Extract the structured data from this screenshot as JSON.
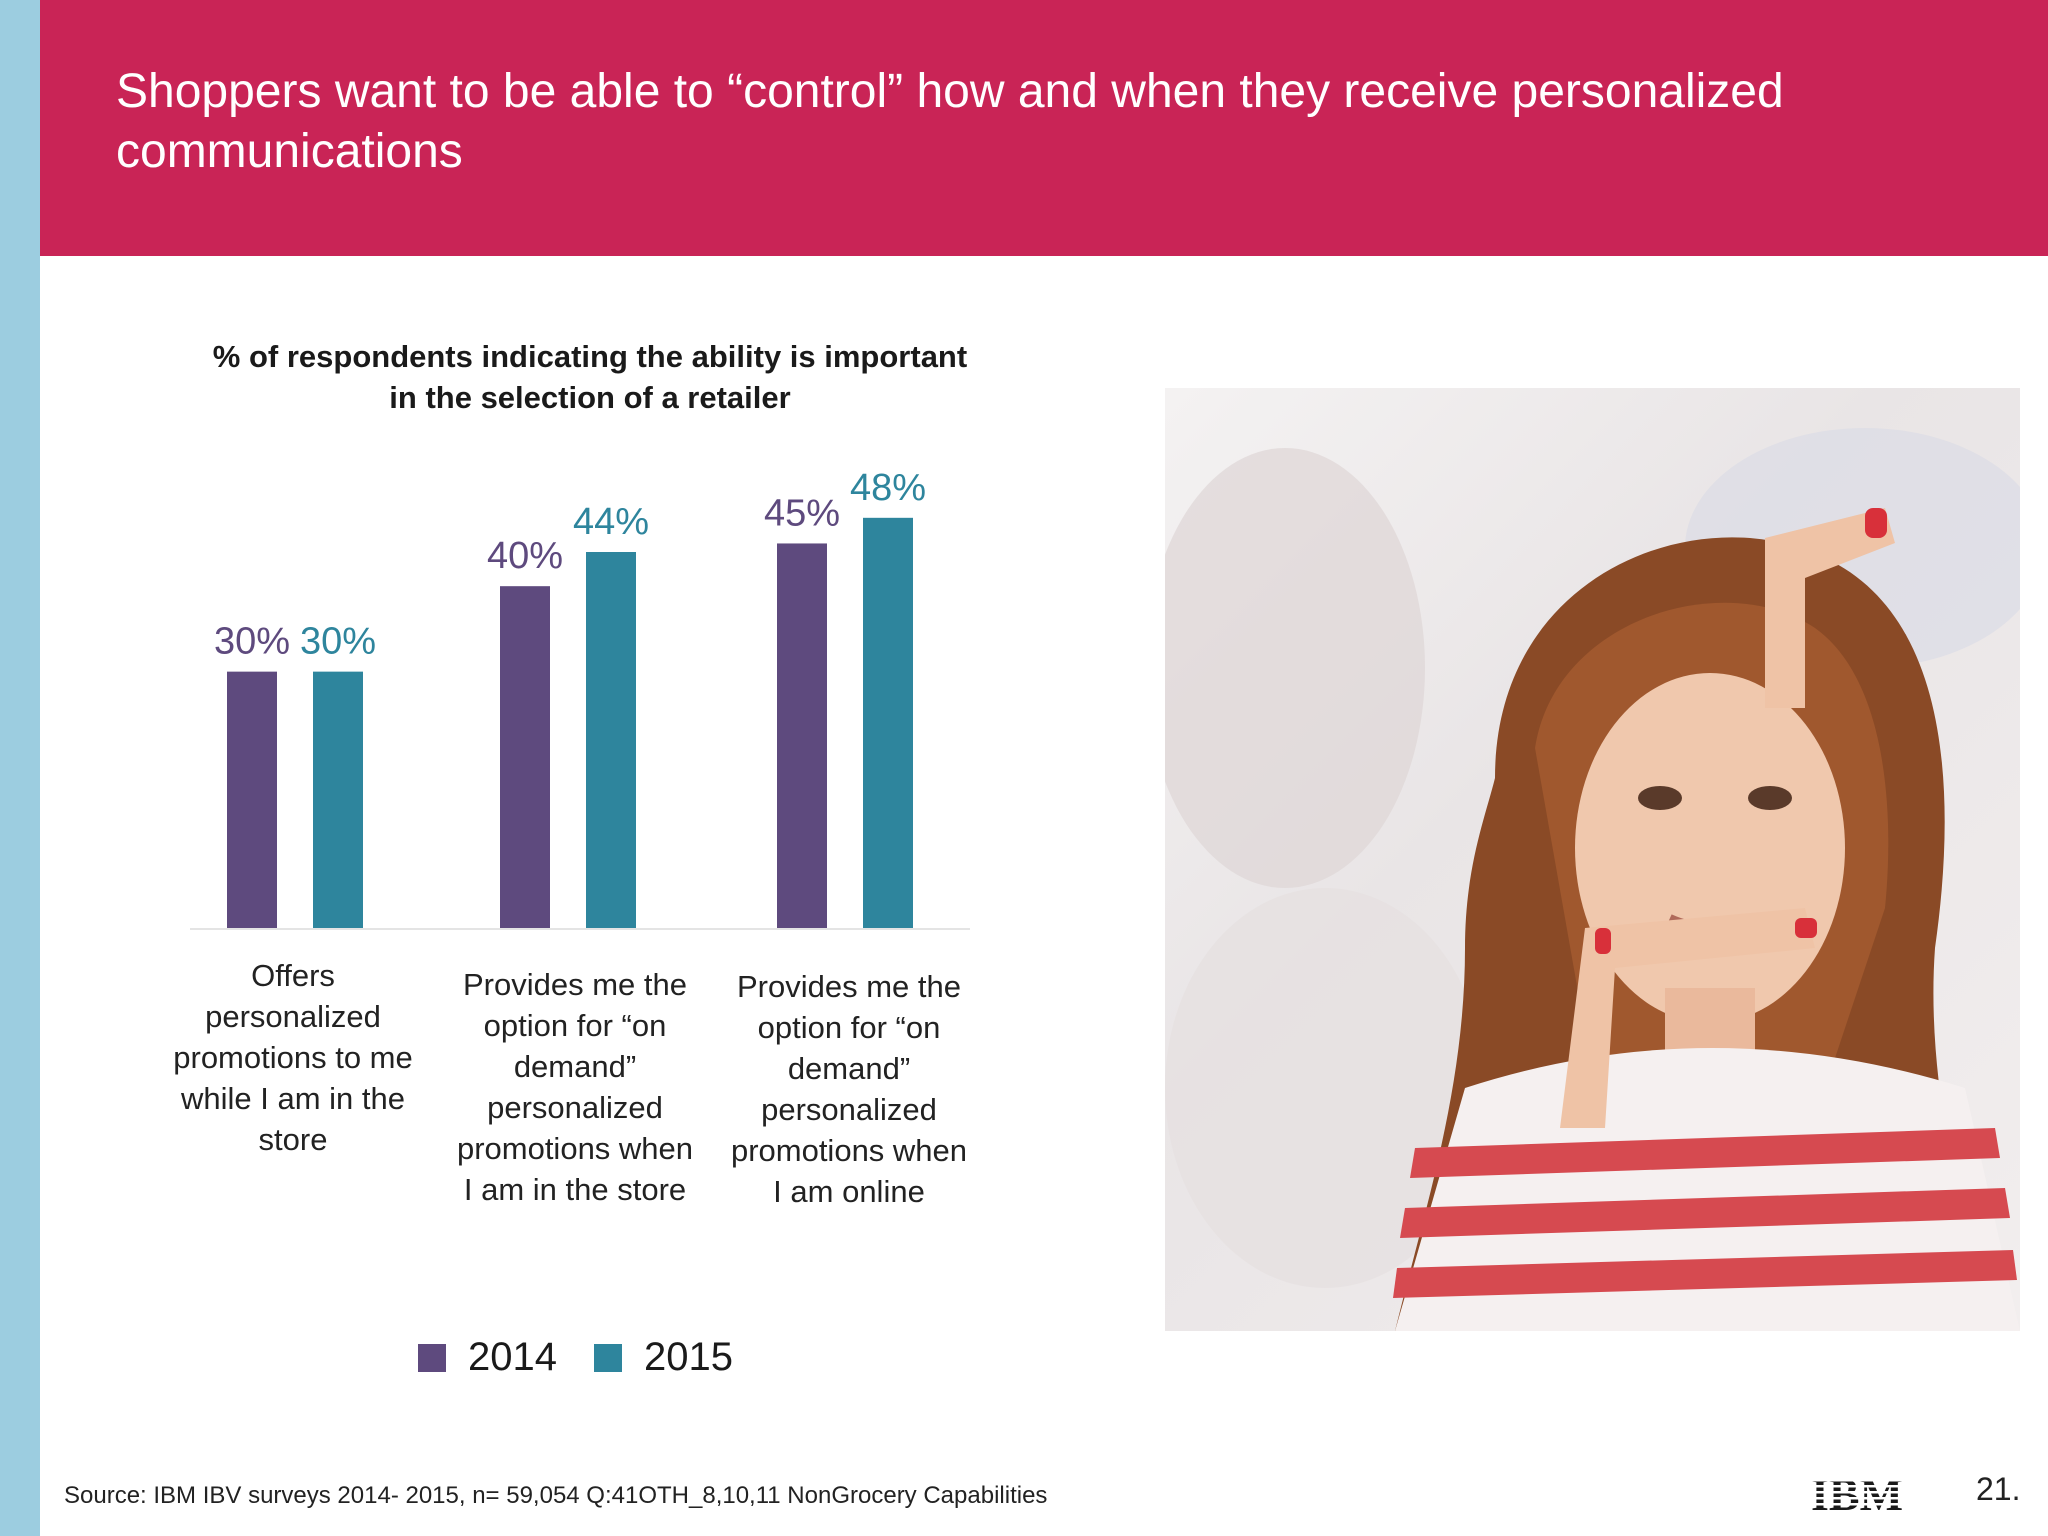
{
  "header": {
    "title": "Shoppers want to be able to “control” how and when they receive personalized communications"
  },
  "colors": {
    "header_bg": "#c92456",
    "stripe": "#9ccde0",
    "series_2014": "#5e4a7e",
    "series_2015": "#2e859d"
  },
  "chart_data": {
    "type": "bar",
    "title": "% of respondents indicating the ability is important in the selection of a retailer",
    "categories": [
      "Offers personalized promotions to me while I am in the store",
      "Provides me the option for “on demand” personalized promotions when I am in the store",
      "Provides me the option for “on demand” personalized promotions when I am online"
    ],
    "series": [
      {
        "name": "2014",
        "values": [
          30,
          40,
          45
        ],
        "labels": [
          "30%",
          "40%",
          "45%"
        ],
        "color": "#5e4a7e"
      },
      {
        "name": "2015",
        "values": [
          30,
          44,
          48
        ],
        "labels": [
          "30%",
          "44%",
          "48%"
        ],
        "color": "#2e859d"
      }
    ],
    "ylim": [
      0,
      55
    ],
    "xlabel": "",
    "ylabel": "",
    "legend": "bottom",
    "grid": false
  },
  "footer": {
    "source": "Source:  IBM IBV surveys 2014- 2015, n=  59,054 Q:41OTH_8,10,11  NonGrocery Capabilities",
    "logo_text": "IBM",
    "page_number": "21."
  },
  "photo": {
    "icon": "photo-of-woman-framing-face-with-hands"
  }
}
